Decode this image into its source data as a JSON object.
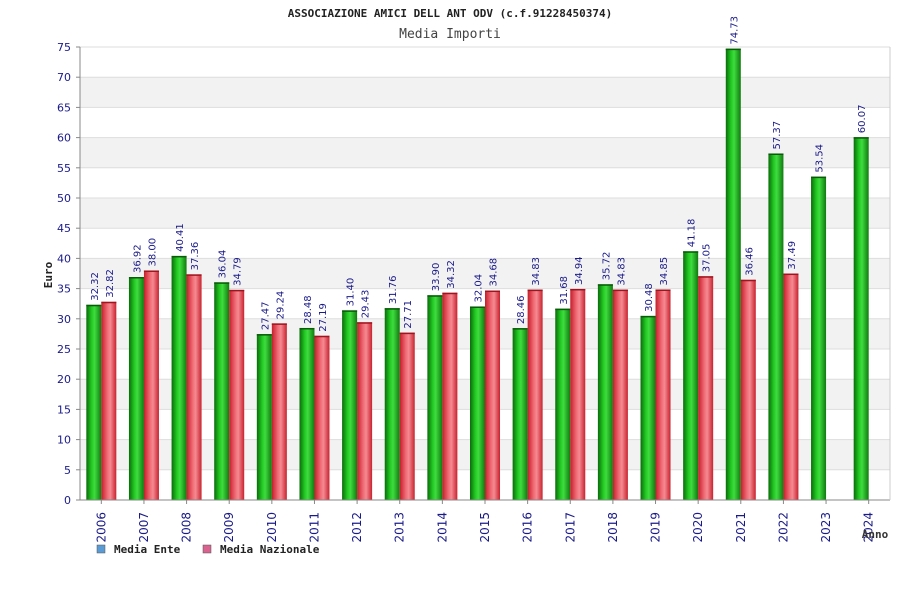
{
  "chart_data": {
    "type": "bar",
    "title": "ASSOCIAZIONE AMICI DELL ANT ODV (c.f.91228450374)",
    "subtitle": "Media Importi",
    "ylabel": "Euro",
    "xlabel": "Anno",
    "ylim": [
      0,
      75
    ],
    "yticks": [
      "0",
      "5",
      "10",
      "15",
      "20",
      "25",
      "30",
      "35",
      "40",
      "45",
      "50",
      "55",
      "60",
      "65",
      "70",
      "75"
    ],
    "grid": true,
    "legend_position": "bottom-left",
    "categories": [
      "2006",
      "2007",
      "2008",
      "2009",
      "2010",
      "2011",
      "2012",
      "2013",
      "2014",
      "2015",
      "2016",
      "2017",
      "2018",
      "2019",
      "2020",
      "2021",
      "2022",
      "2023",
      "2024"
    ],
    "series": [
      {
        "name": "Media Ente",
        "color": "#1aa31a",
        "legend_color": "#5b9bd5",
        "values": [
          32.32,
          36.92,
          40.41,
          36.04,
          27.47,
          28.48,
          31.4,
          31.76,
          33.9,
          32.04,
          28.46,
          31.68,
          35.72,
          30.48,
          41.18,
          74.73,
          57.37,
          53.54,
          60.07
        ],
        "labels": [
          "32.32",
          "36.92",
          "40.41",
          "36.04",
          "27.47",
          "28.48",
          "31.40",
          "31.76",
          "33.90",
          "32.04",
          "28.46",
          "31.68",
          "35.72",
          "30.48",
          "41.18",
          "74.73",
          "57.37",
          "53.54",
          "60.07"
        ]
      },
      {
        "name": "Media Nazionale",
        "color": "#e0303a",
        "legend_color": "#d9628f",
        "values": [
          32.82,
          38.0,
          37.36,
          34.79,
          29.24,
          27.19,
          29.43,
          27.71,
          34.32,
          34.68,
          34.83,
          34.94,
          34.83,
          34.85,
          37.05,
          36.46,
          37.49,
          null,
          null
        ],
        "labels": [
          "32.82",
          "38.00",
          "37.36",
          "34.79",
          "29.24",
          "27.19",
          "29.43",
          "27.71",
          "34.32",
          "34.68",
          "34.83",
          "34.94",
          "34.83",
          "34.85",
          "37.05",
          "36.46",
          "37.49",
          null,
          null
        ]
      }
    ]
  }
}
